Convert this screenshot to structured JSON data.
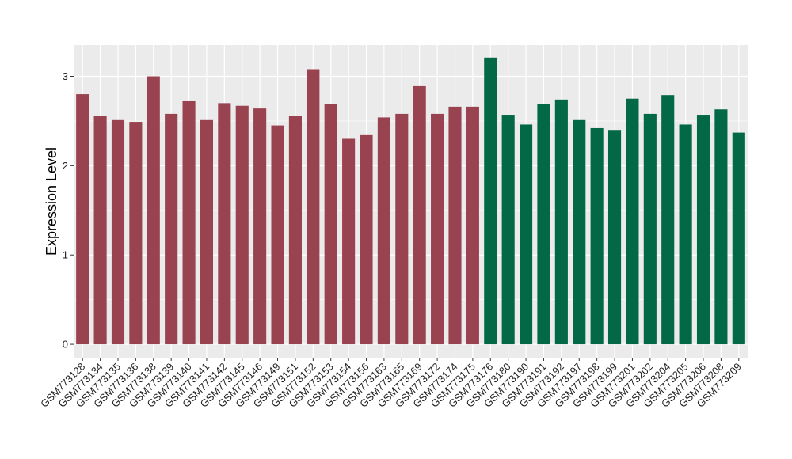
{
  "chart_data": {
    "type": "bar",
    "ylabel": "Expression Level",
    "xlabel": "",
    "ylim": [
      -0.15,
      3.35
    ],
    "yticks": [
      0,
      1,
      2,
      3
    ],
    "grid": true,
    "categories": [
      "GSM773128",
      "GSM773134",
      "GSM773135",
      "GSM773136",
      "GSM773138",
      "GSM773139",
      "GSM773140",
      "GSM773141",
      "GSM773142",
      "GSM773145",
      "GSM773146",
      "GSM773149",
      "GSM773151",
      "GSM773152",
      "GSM773153",
      "GSM773154",
      "GSM773156",
      "GSM773163",
      "GSM773165",
      "GSM773169",
      "GSM773172",
      "GSM773174",
      "GSM773175",
      "GSM773176",
      "GSM773180",
      "GSM773190",
      "GSM773191",
      "GSM773192",
      "GSM773197",
      "GSM773198",
      "GSM773199",
      "GSM773201",
      "GSM773202",
      "GSM773204",
      "GSM773205",
      "GSM773206",
      "GSM773208",
      "GSM773209"
    ],
    "values": [
      2.8,
      2.56,
      2.51,
      2.49,
      3.0,
      2.58,
      2.73,
      2.51,
      2.7,
      2.67,
      2.64,
      2.45,
      2.56,
      3.08,
      2.69,
      2.3,
      2.35,
      2.54,
      2.58,
      2.89,
      2.58,
      2.66,
      2.66,
      3.21,
      2.57,
      2.46,
      2.69,
      2.74,
      2.51,
      2.42,
      2.4,
      2.75,
      2.58,
      2.79,
      2.46,
      2.57,
      2.63,
      2.37
    ],
    "groups": [
      0,
      0,
      0,
      0,
      0,
      0,
      0,
      0,
      0,
      0,
      0,
      0,
      0,
      0,
      0,
      0,
      0,
      0,
      0,
      0,
      0,
      0,
      0,
      1,
      1,
      1,
      1,
      1,
      1,
      1,
      1,
      1,
      1,
      1,
      1,
      1,
      1,
      1
    ],
    "group_colors": [
      "#9a4350",
      "#036845"
    ],
    "panel_background": "#ebebeb",
    "grid_color": "#ffffff"
  }
}
